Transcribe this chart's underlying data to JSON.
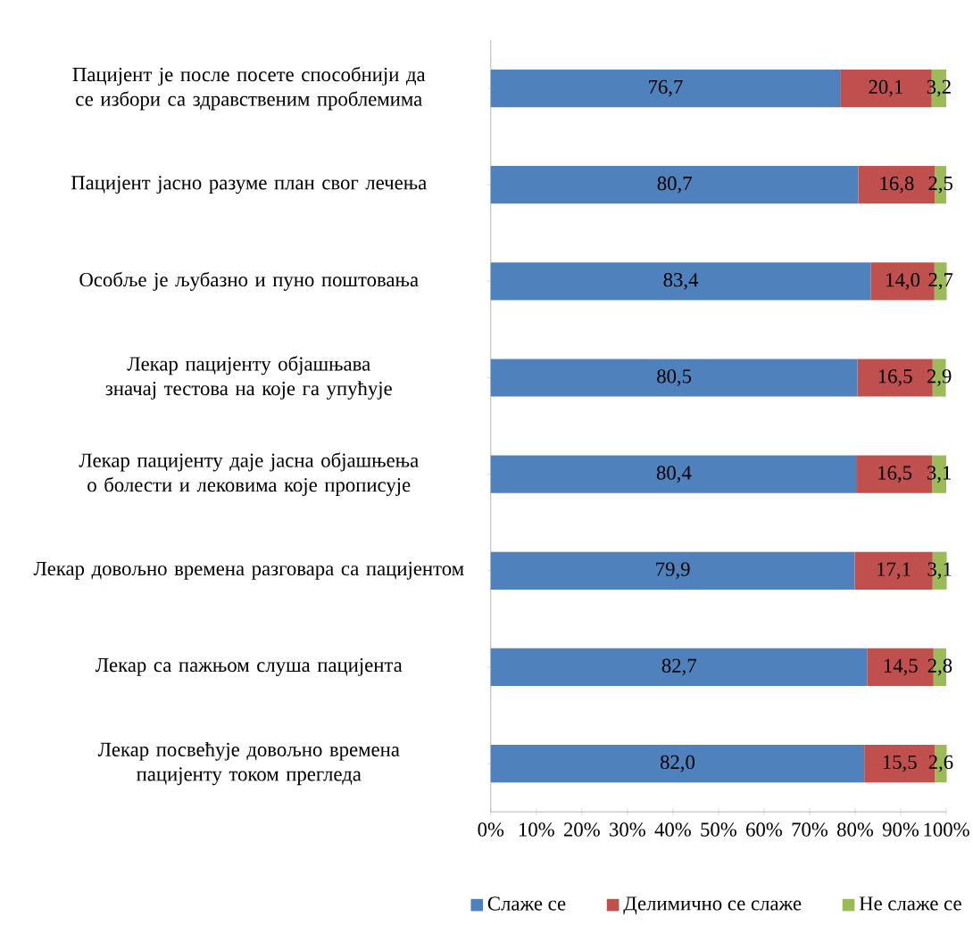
{
  "chart_data": {
    "type": "bar",
    "orientation": "horizontal",
    "stacked": true,
    "categories": [
      "Пацијент је после посете способнији да се избори са здравственим проблемима",
      "Пацијент јасно разуме план свог лечења",
      "Особље је љубазно и пуно поштовања",
      "Лекар пацијенту објашњава значај тестова на које га упућује",
      "Лекар пацијенту даје јасна објашњења о болести и лековима које прописује",
      "Лекар довољно времена разговара са пацијентом",
      "Лекар са пажњом слуша пацијента",
      "Лекар посвећује довољно времена пацијенту током прегледа"
    ],
    "series": [
      {
        "name": "Слаже се",
        "color": "#4f81bd",
        "values": [
          76.7,
          80.7,
          83.4,
          80.5,
          80.4,
          79.9,
          82.7,
          82.0
        ],
        "value_labels": [
          "76,7",
          "80,7",
          "83,4",
          "80,5",
          "80,4",
          "79,9",
          "82,7",
          "82,0"
        ]
      },
      {
        "name": "Делимично се слаже",
        "color": "#c0504d",
        "values": [
          20.1,
          16.8,
          14.0,
          16.5,
          16.5,
          17.1,
          14.5,
          15.5
        ],
        "value_labels": [
          "20,1",
          "16,8",
          "14,0",
          "16,5",
          "16,5",
          "17,1",
          "14,5",
          "15,5"
        ]
      },
      {
        "name": "Не слаже се",
        "color": "#9bbb59",
        "values": [
          3.2,
          2.5,
          2.7,
          2.9,
          3.1,
          3.1,
          2.8,
          2.6
        ],
        "value_labels": [
          "3,2",
          "2,5",
          "2,7",
          "2,9",
          "3,1",
          "3,1",
          "2,8",
          "2,6"
        ]
      }
    ],
    "xlim": [
      0,
      100
    ],
    "xticks": [
      {
        "value": 0,
        "label": "0%"
      },
      {
        "value": 10,
        "label": "10%"
      },
      {
        "value": 20,
        "label": "20%"
      },
      {
        "value": 30,
        "label": "30%"
      },
      {
        "value": 40,
        "label": "40%"
      },
      {
        "value": 50,
        "label": "50%"
      },
      {
        "value": 60,
        "label": "60%"
      },
      {
        "value": 70,
        "label": "70%"
      },
      {
        "value": 80,
        "label": "80%"
      },
      {
        "value": 90,
        "label": "90%"
      },
      {
        "value": 100,
        "label": "100%"
      }
    ],
    "legend": "bottom"
  }
}
